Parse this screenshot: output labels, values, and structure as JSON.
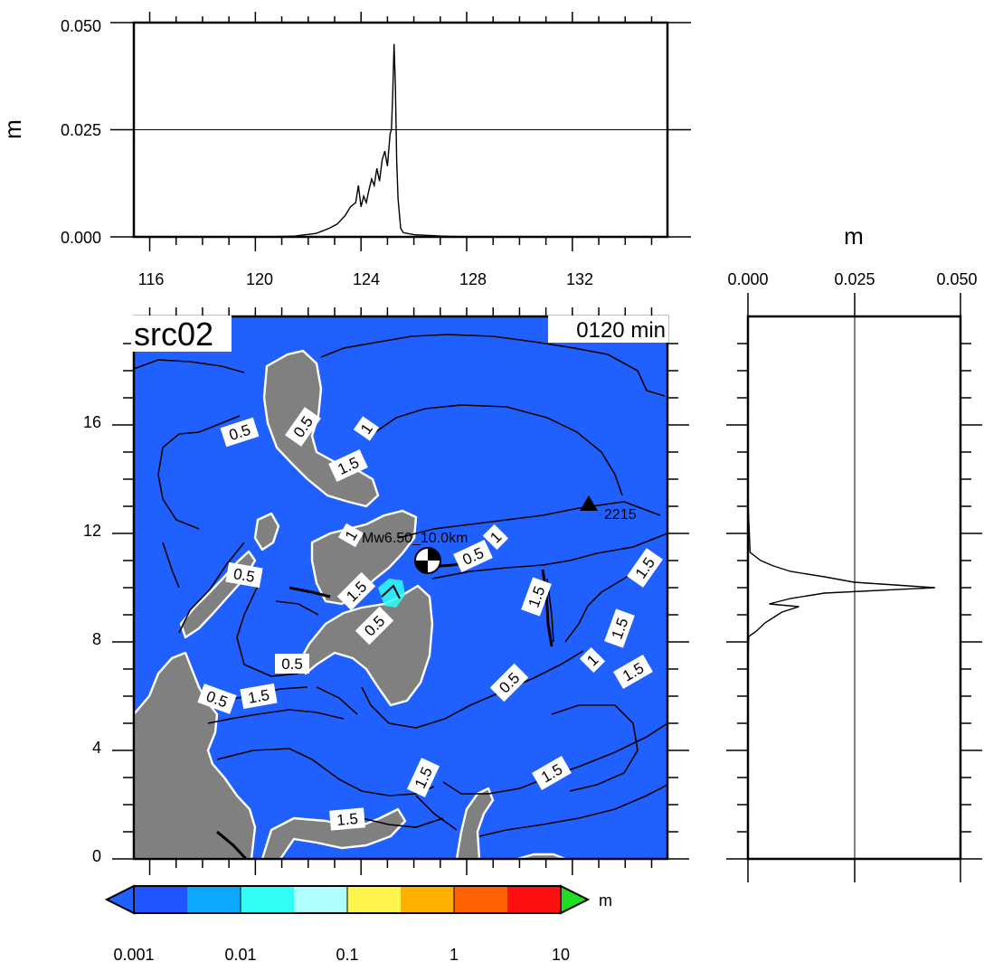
{
  "map": {
    "title": "src02",
    "time_label": "0120 min",
    "source_label": "Mw6.50_10.0km",
    "station_label": "2215",
    "ocean_color": "#2060ff",
    "land_color": "#808080",
    "lon_ticks": [
      "116",
      "120",
      "124",
      "128",
      "132"
    ],
    "lat_ticks": [
      "0",
      "4",
      "8",
      "12",
      "16"
    ],
    "contour_labels": [
      "0.5",
      "0.5",
      "1",
      "1.5",
      "1",
      "0.5",
      "1",
      "1.5",
      "1.5",
      "1.5",
      "1.5",
      "0.5",
      "1.5",
      "1.5",
      "0.5",
      "1.5",
      "1.5",
      "1",
      "1.5",
      "0.5",
      "0.5",
      "0.5"
    ]
  },
  "top_profile": {
    "ylabel": "m",
    "yticks": [
      "0.000",
      "0.025",
      "0.050"
    ],
    "xticks": [
      "116",
      "120",
      "124",
      "128",
      "132"
    ]
  },
  "right_profile": {
    "xlabel": "m",
    "xticks": [
      "0.000",
      "0.025",
      "0.050"
    ]
  },
  "colorbar": {
    "unit": "m",
    "ticks": [
      "0.001",
      "0.01",
      "0.1",
      "1",
      "10"
    ],
    "colors": [
      "#1f55ff",
      "#0aa8ff",
      "#30fff5",
      "#b0ffff",
      "#fff44c",
      "#ffb000",
      "#ff6000",
      "#ff1010"
    ],
    "under_color": "#2060ff",
    "over_color": "#22dd22"
  },
  "chart_data": [
    {
      "type": "line",
      "title": "",
      "xlabel": "",
      "ylabel": "m",
      "xlim": [
        115.4,
        135.6
      ],
      "ylim": [
        0,
        0.05
      ],
      "series": [
        {
          "x": [
            115.4,
            120.5,
            121.5,
            122.3,
            122.8,
            123.1,
            123.4,
            123.6,
            123.8,
            123.9,
            124.0,
            124.1,
            124.2,
            124.3,
            124.4,
            124.5,
            124.6,
            124.7,
            124.8,
            124.9,
            125.0,
            125.1,
            125.15,
            125.2,
            125.25,
            125.3,
            125.35,
            125.4,
            125.5,
            125.6,
            126.0,
            127.0,
            128.0,
            135.6
          ],
          "values": [
            0,
            0,
            0.0002,
            0.0008,
            0.002,
            0.003,
            0.005,
            0.007,
            0.008,
            0.012,
            0.007,
            0.0095,
            0.008,
            0.011,
            0.0135,
            0.012,
            0.016,
            0.013,
            0.018,
            0.02,
            0.0165,
            0.024,
            0.025,
            0.033,
            0.045,
            0.035,
            0.018,
            0.009,
            0.002,
            0.001,
            0.0005,
            0.0002,
            0,
            0
          ]
        }
      ]
    },
    {
      "type": "line",
      "title": "",
      "xlabel": "m",
      "ylabel": "",
      "xlim": [
        0,
        0.05
      ],
      "ylim": [
        -0.2,
        19.8
      ],
      "series": [
        {
          "y": [
            -0.2,
            5,
            7.2,
            8.0,
            8.2,
            8.5,
            8.7,
            8.9,
            9.1,
            9.2,
            9.4,
            9.6,
            9.8,
            10.0,
            10.2,
            10.4,
            10.6,
            10.8,
            11.1,
            13,
            19.8
          ],
          "values": [
            0,
            0,
            0,
            0.0002,
            0.002,
            0.004,
            0.006,
            0.008,
            0.012,
            0.005,
            0.01,
            0.018,
            0.044,
            0.025,
            0.018,
            0.01,
            0.006,
            0.003,
            0.0005,
            0,
            0
          ]
        }
      ]
    }
  ]
}
